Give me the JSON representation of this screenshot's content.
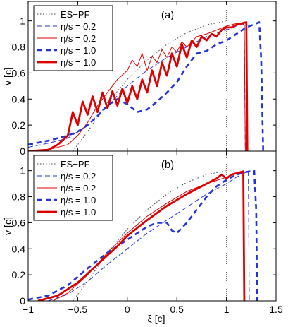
{
  "colors": {
    "axes": "#000000",
    "esPf": "#444444",
    "blue": "#2233dd",
    "red": "#dd0000"
  },
  "shared": {
    "xlabel": "ξ [c]",
    "xlim": [
      -1,
      1.5
    ],
    "xticks": [
      "−1",
      "−0.5",
      "0",
      "0.5",
      "1",
      "1.5"
    ],
    "xtick_values": [
      -1,
      -0.5,
      0,
      0.5,
      1,
      1.5
    ],
    "ylim": [
      0,
      1.15
    ],
    "yticks": [
      "0",
      "0.2",
      "0.4",
      "0.6",
      "0.8",
      "1"
    ],
    "ytick_values": [
      0,
      0.2,
      0.4,
      0.6,
      0.8,
      1
    ],
    "vline_x": 1
  },
  "chart_data": [
    {
      "type": "line",
      "panel_label": "(a)",
      "ylabel": "v [c]",
      "legend": [
        "ES−PF",
        "η/s = 0.2",
        "η/s = 0.2",
        "η/s = 1.0",
        "η/s = 1.0"
      ],
      "legend_placement": "top-left",
      "series": [
        {
          "name": "ES−PF",
          "style": "dotted",
          "x": [
            -0.55,
            -0.4,
            -0.2,
            0,
            0.2,
            0.4,
            0.6,
            0.8,
            1.0
          ],
          "y": [
            0,
            0.15,
            0.37,
            0.55,
            0.7,
            0.82,
            0.91,
            0.97,
            1.0
          ]
        },
        {
          "name": "η/s = 0.2",
          "style": "thin-dashed-blue",
          "x": [
            -1,
            -0.8,
            -0.6,
            -0.4,
            -0.2,
            0,
            0.2,
            0.4,
            0.6,
            0.8,
            1.0,
            1.1,
            1.18,
            1.19
          ],
          "y": [
            0.03,
            0.06,
            0.1,
            0.2,
            0.35,
            0.5,
            0.62,
            0.72,
            0.8,
            0.88,
            0.93,
            0.96,
            0.98,
            0
          ]
        },
        {
          "name": "η/s = 0.2",
          "style": "thin-red",
          "x": [
            -1,
            -0.8,
            -0.6,
            -0.5,
            -0.4,
            -0.3,
            -0.2,
            -0.1,
            0,
            0.05,
            0.1,
            0.15,
            0.2,
            0.25,
            0.3,
            0.35,
            0.4,
            0.45,
            0.5,
            0.55,
            0.6,
            0.7,
            0.8,
            0.9,
            1.0,
            1.1,
            1.15,
            1.18,
            1.19
          ],
          "y": [
            0,
            0.01,
            0.05,
            0.12,
            0.22,
            0.35,
            0.45,
            0.55,
            0.62,
            0.7,
            0.65,
            0.75,
            0.62,
            0.73,
            0.68,
            0.78,
            0.72,
            0.8,
            0.76,
            0.84,
            0.8,
            0.88,
            0.9,
            0.93,
            0.96,
            0.98,
            0.98,
            0.97,
            0
          ]
        },
        {
          "name": "η/s = 1.0",
          "style": "thick-dashed-blue",
          "x": [
            -1,
            -0.8,
            -0.6,
            -0.5,
            -0.4,
            -0.3,
            -0.2,
            -0.1,
            0,
            0.1,
            0.2,
            0.3,
            0.4,
            0.5,
            0.6,
            0.7,
            0.8,
            0.9,
            1.0,
            1.1,
            1.2,
            1.3,
            1.33,
            1.35,
            1.37
          ],
          "y": [
            0.05,
            0.08,
            0.12,
            0.15,
            0.2,
            0.27,
            0.35,
            0.4,
            0.36,
            0.3,
            0.32,
            0.38,
            0.45,
            0.53,
            0.65,
            0.75,
            0.77,
            0.82,
            0.85,
            0.9,
            0.95,
            0.98,
            0.99,
            0.7,
            0
          ]
        },
        {
          "name": "η/s = 1.0",
          "style": "thick-red",
          "x": [
            -1,
            -0.8,
            -0.7,
            -0.6,
            -0.55,
            -0.5,
            -0.45,
            -0.4,
            -0.35,
            -0.3,
            -0.25,
            -0.2,
            -0.15,
            -0.1,
            -0.05,
            0,
            0.05,
            0.1,
            0.15,
            0.2,
            0.25,
            0.3,
            0.35,
            0.4,
            0.45,
            0.5,
            0.55,
            0.6,
            0.65,
            0.7,
            0.75,
            0.8,
            0.85,
            0.9,
            0.95,
            1.0,
            1.05,
            1.1,
            1.15,
            1.2,
            1.21
          ],
          "y": [
            0,
            0.01,
            0.05,
            0.12,
            0.3,
            0.2,
            0.38,
            0.28,
            0.42,
            0.3,
            0.45,
            0.33,
            0.46,
            0.35,
            0.48,
            0.37,
            0.5,
            0.4,
            0.55,
            0.45,
            0.62,
            0.5,
            0.68,
            0.58,
            0.75,
            0.65,
            0.82,
            0.72,
            0.85,
            0.8,
            0.88,
            0.85,
            0.9,
            0.88,
            0.93,
            0.95,
            0.95,
            0.97,
            0.98,
            0.99,
            0
          ]
        }
      ]
    },
    {
      "type": "line",
      "panel_label": "(b)",
      "ylabel": "v [c]",
      "legend": [
        "ES−PF",
        "η/s = 0.2",
        "η/s = 0.2",
        "η/s = 1.0",
        "η/s = 1.0"
      ],
      "legend_placement": "top-left",
      "series": [
        {
          "name": "ES−PF",
          "style": "dotted",
          "x": [
            -0.55,
            -0.4,
            -0.2,
            0,
            0.2,
            0.4,
            0.6,
            0.8,
            1.0
          ],
          "y": [
            0,
            0.15,
            0.37,
            0.55,
            0.7,
            0.82,
            0.91,
            0.97,
            1.0
          ]
        },
        {
          "name": "η/s = 0.2",
          "style": "thin-dashed-blue",
          "x": [
            -0.8,
            -0.6,
            -0.4,
            -0.2,
            0,
            0.2,
            0.4,
            0.6,
            0.8,
            1.0,
            1.1,
            1.2,
            1.22,
            1.23
          ],
          "y": [
            0,
            0.05,
            0.15,
            0.28,
            0.4,
            0.52,
            0.62,
            0.72,
            0.82,
            0.9,
            0.95,
            0.99,
            1.0,
            0
          ]
        },
        {
          "name": "η/s = 0.2",
          "style": "thin-red",
          "x": [
            -0.75,
            -0.6,
            -0.4,
            -0.2,
            0,
            0.2,
            0.4,
            0.6,
            0.8,
            1.0,
            1.1,
            1.17,
            1.18
          ],
          "y": [
            0,
            0.06,
            0.2,
            0.37,
            0.52,
            0.65,
            0.75,
            0.84,
            0.9,
            0.95,
            0.98,
            1.0,
            0
          ]
        },
        {
          "name": "η/s = 1.0",
          "style": "thick-dashed-blue",
          "x": [
            -1,
            -0.8,
            -0.6,
            -0.4,
            -0.2,
            0,
            0.2,
            0.3,
            0.4,
            0.45,
            0.5,
            0.6,
            0.7,
            0.8,
            0.9,
            1.0,
            1.1,
            1.2,
            1.28,
            1.3,
            1.31
          ],
          "y": [
            0.01,
            0.04,
            0.12,
            0.25,
            0.37,
            0.47,
            0.57,
            0.6,
            0.6,
            0.54,
            0.52,
            0.6,
            0.7,
            0.8,
            0.88,
            0.93,
            0.97,
            0.99,
            1.0,
            0.7,
            0
          ]
        },
        {
          "name": "η/s = 1.0",
          "style": "thick-red",
          "x": [
            -0.9,
            -0.7,
            -0.5,
            -0.3,
            -0.1,
            0,
            0.2,
            0.4,
            0.6,
            0.8,
            0.9,
            0.95,
            1.0,
            1.05,
            1.1,
            1.15,
            1.17,
            1.18
          ],
          "y": [
            0,
            0.04,
            0.14,
            0.28,
            0.42,
            0.5,
            0.62,
            0.73,
            0.82,
            0.9,
            0.94,
            0.97,
            0.94,
            0.97,
            0.98,
            0.99,
            0.99,
            0
          ]
        }
      ]
    }
  ]
}
